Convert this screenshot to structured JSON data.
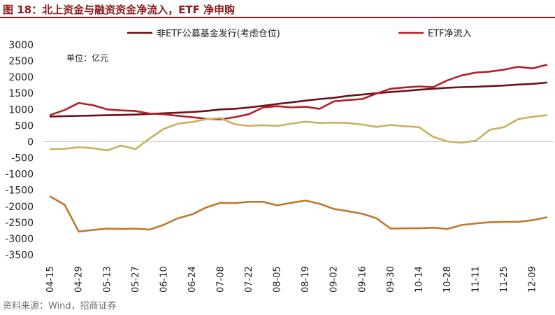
{
  "header": {
    "title": "图 18：北上资金与融资资金净流入，ETF 净申购"
  },
  "footer": {
    "source": "资料来源：Wind，招商证券"
  },
  "chart_data": {
    "type": "line",
    "unit_label": "单位：亿元",
    "categories": [
      "04-15",
      "04-22",
      "04-29",
      "05-06",
      "05-13",
      "05-20",
      "05-27",
      "06-03",
      "06-10",
      "06-17",
      "06-24",
      "07-01",
      "07-08",
      "07-15",
      "07-22",
      "07-29",
      "08-05",
      "08-12",
      "08-19",
      "08-26",
      "09-02",
      "09-09",
      "09-16",
      "09-23",
      "09-30",
      "10-07",
      "10-14",
      "10-21",
      "10-28",
      "11-04",
      "11-11",
      "11-18",
      "11-25",
      "12-02",
      "12-09",
      "12-16"
    ],
    "tick_labels": [
      "04-15",
      "04-29",
      "05-13",
      "05-27",
      "06-10",
      "06-24",
      "07-08",
      "07-22",
      "08-05",
      "08-19",
      "09-02",
      "09-16",
      "09-30",
      "10-14",
      "10-28",
      "11-11",
      "11-25",
      "12-09"
    ],
    "ylim": [
      -3500,
      3000
    ],
    "yticks": [
      3000,
      2500,
      2000,
      1500,
      1000,
      500,
      0,
      -500,
      -1000,
      -1500,
      -2000,
      -2500,
      -3000,
      -3500
    ],
    "grid": false,
    "legend_position": "top",
    "series": [
      {
        "name": "非ETF公募基金发行(考虑仓位)",
        "color": "#6b0f16",
        "in_legend": true,
        "values": [
          780,
          790,
          800,
          810,
          820,
          830,
          840,
          860,
          880,
          900,
          920,
          950,
          1000,
          1020,
          1060,
          1110,
          1170,
          1220,
          1270,
          1320,
          1360,
          1420,
          1460,
          1500,
          1540,
          1570,
          1610,
          1640,
          1670,
          1690,
          1700,
          1720,
          1740,
          1770,
          1790,
          1830
        ]
      },
      {
        "name": "ETF净流入",
        "color": "#b51e28",
        "in_legend": true,
        "values": [
          830,
          980,
          1200,
          1130,
          1000,
          970,
          950,
          870,
          850,
          800,
          760,
          710,
          690,
          760,
          850,
          1060,
          1100,
          1060,
          1080,
          1020,
          1250,
          1290,
          1320,
          1490,
          1640,
          1680,
          1710,
          1690,
          1900,
          2050,
          2140,
          2170,
          2230,
          2320,
          2270,
          2380
        ]
      },
      {
        "name": "",
        "color": "#c9b060",
        "in_legend": false,
        "values": [
          -230,
          -220,
          -170,
          -200,
          -270,
          -120,
          -230,
          100,
          400,
          560,
          610,
          700,
          730,
          540,
          490,
          510,
          490,
          560,
          620,
          580,
          590,
          580,
          530,
          460,
          520,
          480,
          450,
          150,
          10,
          -30,
          30,
          370,
          450,
          700,
          770,
          820
        ]
      },
      {
        "name": "",
        "color": "#c0782a",
        "in_legend": false,
        "values": [
          -1700,
          -1950,
          -2780,
          -2730,
          -2690,
          -2700,
          -2690,
          -2720,
          -2570,
          -2370,
          -2250,
          -2030,
          -1890,
          -1900,
          -1860,
          -1860,
          -1970,
          -1890,
          -1820,
          -1920,
          -2080,
          -2150,
          -2230,
          -2370,
          -2690,
          -2680,
          -2680,
          -2660,
          -2700,
          -2580,
          -2530,
          -2490,
          -2480,
          -2480,
          -2430,
          -2340
        ]
      }
    ]
  }
}
